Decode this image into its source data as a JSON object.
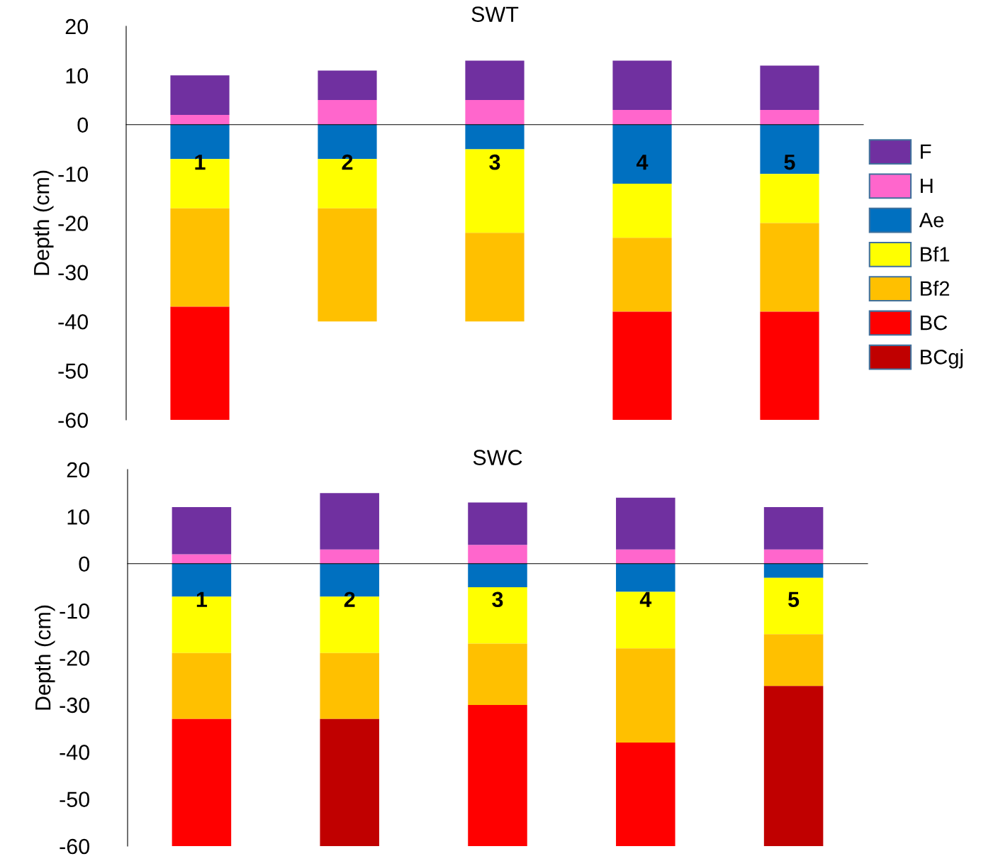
{
  "chart_data": [
    {
      "type": "bar",
      "title": "SWT",
      "ylabel": "Depth (cm)",
      "categories": [
        "1",
        "2",
        "3",
        "4",
        "5"
      ],
      "stacked": true,
      "ylim": [
        -60,
        20
      ],
      "yticks": [
        -60,
        -50,
        -40,
        -30,
        -20,
        -10,
        0,
        10,
        20
      ],
      "grid": false,
      "legend": "right",
      "series": [
        {
          "name": "H",
          "color": "#ff66cc",
          "values": [
            2,
            5,
            5,
            3,
            3
          ]
        },
        {
          "name": "F",
          "color": "#7030a0",
          "values": [
            8,
            6,
            8,
            10,
            9
          ]
        },
        {
          "name": "Ae",
          "color": "#0070c0",
          "values": [
            -7,
            -7,
            -5,
            -12,
            -10
          ]
        },
        {
          "name": "Bf1",
          "color": "#ffff00",
          "values": [
            -10,
            -10,
            -17,
            -11,
            -10
          ]
        },
        {
          "name": "Bf2",
          "color": "#ffc000",
          "values": [
            -20,
            -23,
            -18,
            -15,
            -18
          ]
        },
        {
          "name": "BC",
          "color": "#ff0000",
          "values": [
            -23,
            null,
            null,
            -22,
            -22
          ]
        },
        {
          "name": "BCgj",
          "color": "#c00000",
          "values": [
            null,
            null,
            null,
            null,
            null
          ]
        }
      ]
    },
    {
      "type": "bar",
      "title": "SWC",
      "ylabel": "Depth (cm)",
      "categories": [
        "1",
        "2",
        "3",
        "4",
        "5"
      ],
      "stacked": true,
      "ylim": [
        -60,
        20
      ],
      "yticks": [
        -60,
        -50,
        -40,
        -30,
        -20,
        -10,
        0,
        10,
        20
      ],
      "grid": false,
      "legend": false,
      "series": [
        {
          "color": "#ff66cc",
          "values": [
            2,
            3,
            4,
            3,
            3
          ]
        },
        {
          "color": "#7030a0",
          "values": [
            10,
            12,
            9,
            11,
            9
          ]
        },
        {
          "color": "#0070c0",
          "values": [
            -7,
            -7,
            -5,
            -6,
            -3
          ]
        },
        {
          "color": "#ffff00",
          "values": [
            -12,
            -12,
            -12,
            -12,
            -12
          ]
        },
        {
          "color": "#ffc000",
          "values": [
            -14,
            -14,
            -13,
            -20,
            -11
          ]
        },
        {
          "color": "#ff0000",
          "values": [
            -27,
            null,
            -30,
            -22,
            null
          ]
        },
        {
          "color": "#c00000",
          "values": [
            null,
            -27,
            null,
            null,
            -34
          ]
        }
      ]
    }
  ]
}
